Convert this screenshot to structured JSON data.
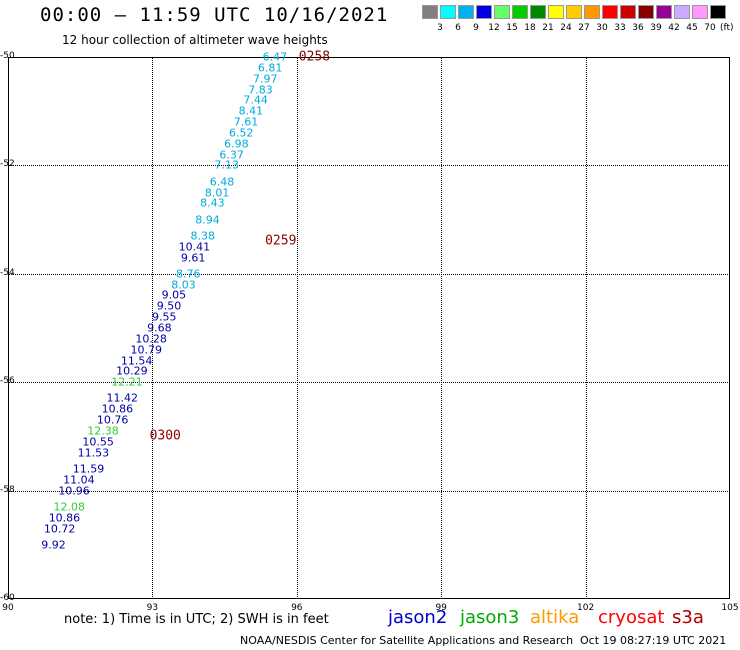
{
  "header": {
    "title": "00:00 – 11:59 UTC 10/16/2021",
    "subtitle": "12 hour collection of altimeter wave heights"
  },
  "legend": {
    "unit": "(ft)",
    "bins": [
      {
        "color": "#808080",
        "label": "3"
      },
      {
        "color": "#00ffff",
        "label": "6"
      },
      {
        "color": "#00b0f0",
        "label": "9"
      },
      {
        "color": "#0000e0",
        "label": "12"
      },
      {
        "color": "#66ff66",
        "label": "15"
      },
      {
        "color": "#00cc00",
        "label": "18"
      },
      {
        "color": "#008800",
        "label": "21"
      },
      {
        "color": "#ffff00",
        "label": "24"
      },
      {
        "color": "#ffcc00",
        "label": "27"
      },
      {
        "color": "#ff9900",
        "label": "30"
      },
      {
        "color": "#ff0000",
        "label": "33"
      },
      {
        "color": "#cc0000",
        "label": "36"
      },
      {
        "color": "#880000",
        "label": "39"
      },
      {
        "color": "#990099",
        "label": "42"
      },
      {
        "color": "#ccaaff",
        "label": "45"
      },
      {
        "color": "#ff99ff",
        "label": "70"
      },
      {
        "color": "#000000",
        "label": ""
      }
    ]
  },
  "map": {
    "lon_ticks": [
      "90",
      "93",
      "96",
      "99",
      "102",
      "105"
    ],
    "lat_ticks": [
      "-50",
      "-52",
      "-54",
      "-56",
      "-58",
      "-60"
    ],
    "colors": {
      "jason2": "#0000aa",
      "cyan": "#00aadd",
      "green": "#33cc33",
      "time": "#8b0000"
    },
    "times": [
      {
        "label": "0258",
        "lon": 96.0,
        "lat": -50.0
      },
      {
        "label": "0259",
        "lon": 95.3,
        "lat": -53.4
      },
      {
        "label": "0300",
        "lon": 92.9,
        "lat": -57.0
      }
    ],
    "observations": [
      {
        "value": "6.47",
        "lon": 95.8,
        "lat": -50.0,
        "color": "cyan"
      },
      {
        "value": "6.81",
        "lon": 95.7,
        "lat": -50.2,
        "color": "cyan"
      },
      {
        "value": "7.97",
        "lon": 95.6,
        "lat": -50.4,
        "color": "cyan"
      },
      {
        "value": "7.83",
        "lon": 95.5,
        "lat": -50.6,
        "color": "cyan"
      },
      {
        "value": "7.44",
        "lon": 95.4,
        "lat": -50.8,
        "color": "cyan"
      },
      {
        "value": "8.41",
        "lon": 95.3,
        "lat": -51.0,
        "color": "cyan"
      },
      {
        "value": "7.61",
        "lon": 95.2,
        "lat": -51.2,
        "color": "cyan"
      },
      {
        "value": "6.52",
        "lon": 95.1,
        "lat": -51.4,
        "color": "cyan"
      },
      {
        "value": "6.98",
        "lon": 95.0,
        "lat": -51.6,
        "color": "cyan"
      },
      {
        "value": "6.37",
        "lon": 94.9,
        "lat": -51.8,
        "color": "cyan"
      },
      {
        "value": "7.13",
        "lon": 94.8,
        "lat": -52.0,
        "color": "cyan"
      },
      {
        "value": "6.48",
        "lon": 94.7,
        "lat": -52.3,
        "color": "cyan"
      },
      {
        "value": "8.01",
        "lon": 94.6,
        "lat": -52.5,
        "color": "cyan"
      },
      {
        "value": "8.43",
        "lon": 94.5,
        "lat": -52.7,
        "color": "cyan"
      },
      {
        "value": "8.94",
        "lon": 94.4,
        "lat": -53.0,
        "color": "cyan"
      },
      {
        "value": "8.38",
        "lon": 94.3,
        "lat": -53.3,
        "color": "cyan"
      },
      {
        "value": "10.41",
        "lon": 94.2,
        "lat": -53.5,
        "color": "jason2"
      },
      {
        "value": "9.61",
        "lon": 94.1,
        "lat": -53.7,
        "color": "jason2"
      },
      {
        "value": "8.76",
        "lon": 94.0,
        "lat": -54.0,
        "color": "cyan"
      },
      {
        "value": "8.03",
        "lon": 93.9,
        "lat": -54.2,
        "color": "cyan"
      },
      {
        "value": "9.05",
        "lon": 93.7,
        "lat": -54.4,
        "color": "jason2"
      },
      {
        "value": "9.50",
        "lon": 93.6,
        "lat": -54.6,
        "color": "jason2"
      },
      {
        "value": "9.55",
        "lon": 93.5,
        "lat": -54.8,
        "color": "jason2"
      },
      {
        "value": "9.68",
        "lon": 93.4,
        "lat": -55.0,
        "color": "jason2"
      },
      {
        "value": "10.28",
        "lon": 93.3,
        "lat": -55.2,
        "color": "jason2"
      },
      {
        "value": "10.79",
        "lon": 93.2,
        "lat": -55.4,
        "color": "jason2"
      },
      {
        "value": "11.54",
        "lon": 93.0,
        "lat": -55.6,
        "color": "jason2"
      },
      {
        "value": "10.29",
        "lon": 92.9,
        "lat": -55.8,
        "color": "jason2"
      },
      {
        "value": "12.21",
        "lon": 92.8,
        "lat": -56.0,
        "color": "green"
      },
      {
        "value": "11.42",
        "lon": 92.7,
        "lat": -56.3,
        "color": "jason2"
      },
      {
        "value": "10.86",
        "lon": 92.6,
        "lat": -56.5,
        "color": "jason2"
      },
      {
        "value": "10.76",
        "lon": 92.5,
        "lat": -56.7,
        "color": "jason2"
      },
      {
        "value": "12.38",
        "lon": 92.3,
        "lat": -56.9,
        "color": "green"
      },
      {
        "value": "10.55",
        "lon": 92.2,
        "lat": -57.1,
        "color": "jason2"
      },
      {
        "value": "11.53",
        "lon": 92.1,
        "lat": -57.3,
        "color": "jason2"
      },
      {
        "value": "11.59",
        "lon": 92.0,
        "lat": -57.6,
        "color": "jason2"
      },
      {
        "value": "11.04",
        "lon": 91.8,
        "lat": -57.8,
        "color": "jason2"
      },
      {
        "value": "10.96",
        "lon": 91.7,
        "lat": -58.0,
        "color": "jason2"
      },
      {
        "value": "12.08",
        "lon": 91.6,
        "lat": -58.3,
        "color": "green"
      },
      {
        "value": "10.86",
        "lon": 91.5,
        "lat": -58.5,
        "color": "jason2"
      },
      {
        "value": "10.72",
        "lon": 91.4,
        "lat": -58.7,
        "color": "jason2"
      },
      {
        "value": "9.92",
        "lon": 91.2,
        "lat": -59.0,
        "color": "jason2"
      }
    ]
  },
  "footer": {
    "note": "note:  1) Time is in UTC;  2) SWH is in feet",
    "satellites": [
      {
        "name": "jason2",
        "color": "#0000cc"
      },
      {
        "name": "jason3",
        "color": "#00aa00"
      },
      {
        "name": "altika",
        "color": "#ff9900"
      },
      {
        "name": "cryosat",
        "color": "#ff0000"
      },
      {
        "name": "s3a",
        "color": "#aa0000"
      }
    ],
    "credit": "NOAA/NESDIS Center for Satellite Applications and Research",
    "generated": "Oct 19 08:27:19 UTC 2021"
  }
}
